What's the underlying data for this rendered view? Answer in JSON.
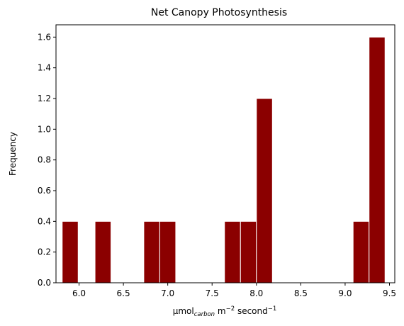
{
  "chart_data": {
    "type": "bar",
    "title": "Net Canopy Photosynthesis",
    "xlabel": {
      "base": "μmol",
      "subscript": "carbon",
      "middle": " m",
      "exp1": "−2",
      "tail": " second",
      "exp2": "−1"
    },
    "ylabel": "Frequency",
    "xlim": [
      5.74,
      9.56
    ],
    "ylim": [
      0,
      1.68
    ],
    "xticks": [
      6.0,
      6.5,
      7.0,
      7.5,
      8.0,
      8.5,
      9.0,
      9.5
    ],
    "xtick_labels": [
      "6.0",
      "6.5",
      "7.0",
      "7.5",
      "8.0",
      "8.5",
      "9.0",
      "9.5"
    ],
    "yticks": [
      0,
      0.2,
      0.4,
      0.6,
      0.8,
      1.0,
      1.2,
      1.4,
      1.6
    ],
    "ytick_labels": [
      "0.0",
      "0.2",
      "0.4",
      "0.6",
      "0.8",
      "1.0",
      "1.2",
      "1.4",
      "1.6"
    ],
    "bar_color": "#8b0000",
    "bar_edge_color": "#ffffff",
    "bins": [
      {
        "x0": 5.81,
        "x1": 5.99,
        "value": 0.4
      },
      {
        "x0": 6.18,
        "x1": 6.36,
        "value": 0.4
      },
      {
        "x0": 6.73,
        "x1": 6.91,
        "value": 0.4
      },
      {
        "x0": 6.91,
        "x1": 7.09,
        "value": 0.4
      },
      {
        "x0": 7.64,
        "x1": 7.82,
        "value": 0.4
      },
      {
        "x0": 7.82,
        "x1": 8.0,
        "value": 0.4
      },
      {
        "x0": 8.0,
        "x1": 8.18,
        "value": 1.2
      },
      {
        "x0": 9.09,
        "x1": 9.27,
        "value": 0.4
      },
      {
        "x0": 9.27,
        "x1": 9.45,
        "value": 1.6
      }
    ]
  }
}
